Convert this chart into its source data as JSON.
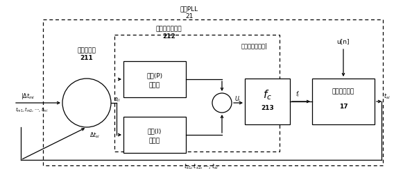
{
  "bg_color": "#ffffff",
  "title": "数字PLL",
  "title_num": "21",
  "label_211_top": "数字鉴相器",
  "label_211_num": "211",
  "label_212_top": "数字环路滤波器",
  "label_212_num": "212",
  "label_213_title": "数字控制振荡器|",
  "label_213_num": "213",
  "label_17_top": "本地时钟模块",
  "label_17_num": "17",
  "box_P_line1": "比例(P)",
  "box_P_line2": "控制器",
  "box_I_line1": "积分(I)",
  "box_I_line2": "控制器",
  "fc_label": "f_c",
  "u_n_label": "u[n]",
  "input_top": "|\\u0394t_{mi}",
  "input_bottom": "t_{m1},t_{m2},\\cdots,t_{mi}",
  "delta_tsi": "\\u0394t_{si}",
  "e_label": "e_{ii}",
  "u_i_label": "U_i",
  "f_i_label": "f_i",
  "t_si_label": "t_{si}",
  "feedback_label": "t_{s1},t_{s2},\\cdots,t_{si}",
  "lw": 0.9,
  "fs_main": 6.5,
  "fs_small": 5.8,
  "dash": [
    4,
    3
  ]
}
